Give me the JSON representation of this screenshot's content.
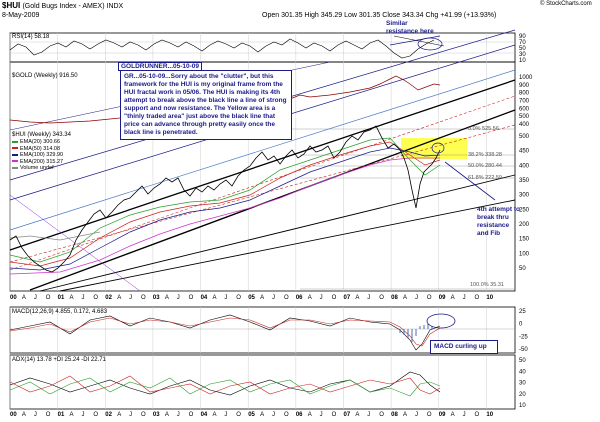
{
  "header": {
    "symbol": "$HUI",
    "name": "(Gold Bugs Index - AMEX) INDX",
    "date": "8-May-2009",
    "quote": "Open 301.35  High 345.29  Low 301.35  Close 343.34  Chg +41.99 (+13.93%)",
    "source": "© StockCharts.com"
  },
  "panels": {
    "rsi": {
      "label": "RSI(14) 58.18",
      "ticks": [
        "90",
        "70",
        "50",
        "30",
        "10"
      ]
    },
    "gold": {
      "label": "$GOLD (Weekly) 916.50",
      "ticks": [
        "1000",
        "900",
        "800",
        "700",
        "600",
        "500",
        "400"
      ]
    },
    "hui": {
      "label": "$HUI (Weekly) 343.34",
      "legend": [
        "EMA(20) 300.66",
        "EMA(50) 314.08",
        "EMA(100) 329.90",
        "EMA(200) 315.27",
        "Volume undef"
      ],
      "ticks": [
        "500",
        "450",
        "400",
        "350",
        "300",
        "250",
        "200",
        "150",
        "100",
        "50"
      ],
      "fibs": [
        "0.0% 525.56",
        "38.2% 338.28",
        "50.0% 280.44",
        "61.8% 222.59",
        "100.0% 35.31"
      ]
    },
    "macd": {
      "label": "MACD(12,26,9) 4.855, 0.172, 4.683",
      "ticks": [
        "25",
        "0",
        "-25",
        "-50"
      ]
    },
    "adx": {
      "label": "ADX(14) 13.78  +DI 25.24  -DI 22.71",
      "ticks": [
        "50",
        "40",
        "30",
        "20",
        "10"
      ]
    }
  },
  "x_axis": {
    "years": [
      "00",
      "01",
      "02",
      "03",
      "04",
      "05",
      "06",
      "07",
      "08",
      "09",
      "10"
    ],
    "months": [
      "A",
      "J",
      "O"
    ]
  },
  "annotations": {
    "goldrunner": "GOLDRUNNER...05-10-09",
    "main_note": "GR...05-10-09...Sorry about the \"clutter\", but this framework for the HUI is my original frame from the HUI fractal work in 05/06.  The HUI is making its 4th attempt to break above the black line a line of strong support and now resistance.  The Yellow area is a \"thinly traded area\" just above the black line that price can advance through pretty easily once the black line is penetrated.",
    "similar": "Similar resistance here",
    "attempt": "4th attempt to break thru resistance and Fib",
    "macd": "MACD curling up"
  },
  "chart_data": {
    "type": "line",
    "title": "$HUI (Gold Bugs Index - AMEX) INDX Weekly",
    "x": [
      2000.0,
      2000.5,
      2001.0,
      2001.5,
      2002.0,
      2002.5,
      2003.0,
      2003.5,
      2004.0,
      2004.5,
      2005.0,
      2005.5,
      2006.0,
      2006.5,
      2007.0,
      2007.5,
      2008.0,
      2008.25,
      2008.5,
      2008.83,
      2009.0,
      2009.35
    ],
    "series": [
      {
        "name": "HUI",
        "values": [
          80,
          55,
          40,
          60,
          110,
          135,
          150,
          200,
          235,
          180,
          205,
          210,
          300,
          330,
          340,
          335,
          450,
          500,
          380,
          155,
          260,
          343
        ]
      },
      {
        "name": "GOLD",
        "values": [
          285,
          275,
          270,
          275,
          290,
          315,
          350,
          360,
          410,
          400,
          425,
          430,
          520,
          600,
          640,
          660,
          900,
          1000,
          860,
          720,
          880,
          916
        ]
      }
    ],
    "fib_levels": [
      {
        "label": "0.0%",
        "value": 525.56
      },
      {
        "label": "38.2%",
        "value": 338.28
      },
      {
        "label": "50.0%",
        "value": 280.44
      },
      {
        "label": "61.8%",
        "value": 222.59
      },
      {
        "label": "100.0%",
        "value": 35.31
      }
    ],
    "indicators": {
      "RSI": 58.18,
      "MACD": [
        4.855,
        0.172,
        4.683
      ],
      "ADX": 13.78,
      "+DI": 25.24,
      "-DI": 22.71
    },
    "colors": {
      "thinly_traded_zone": "#ffff33",
      "price": "#8b0000",
      "trend": "#000000"
    }
  }
}
